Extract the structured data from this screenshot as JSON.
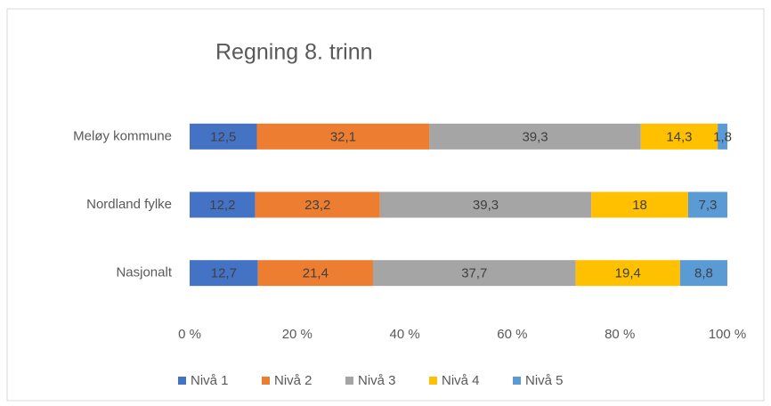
{
  "chart_data": {
    "type": "stacked_bar_horizontal",
    "title": "Regning 8. trinn",
    "categories": [
      "Meløy kommune",
      "Nordland fylke",
      "Nasjonalt"
    ],
    "series": [
      {
        "name": "Nivå 1",
        "color": "#4472c4",
        "values": [
          12.5,
          12.2,
          12.7
        ],
        "value_labels": [
          "12,5",
          "12,2",
          "12,7"
        ]
      },
      {
        "name": "Nivå 2",
        "color": "#ed7d31",
        "values": [
          32.1,
          23.2,
          21.4
        ],
        "value_labels": [
          "32,1",
          "23,2",
          "21,4"
        ]
      },
      {
        "name": "Nivå 3",
        "color": "#a5a5a5",
        "values": [
          39.3,
          39.3,
          37.7
        ],
        "value_labels": [
          "39,3",
          "39,3",
          "37,7"
        ]
      },
      {
        "name": "Nivå 4",
        "color": "#ffc000",
        "values": [
          14.3,
          18,
          19.4
        ],
        "value_labels": [
          "14,3",
          "18",
          "19,4"
        ]
      },
      {
        "name": "Nivå 5",
        "color": "#5b9bd5",
        "values": [
          1.8,
          7.3,
          8.8
        ],
        "value_labels": [
          "1,8",
          "7,3",
          "8,8"
        ]
      }
    ],
    "xlim": [
      0,
      100
    ],
    "xticks": [
      {
        "value": 0,
        "label": "0 %"
      },
      {
        "value": 20,
        "label": "20 %"
      },
      {
        "value": 40,
        "label": "40 %"
      },
      {
        "value": 60,
        "label": "60 %"
      },
      {
        "value": 80,
        "label": "80 %"
      },
      {
        "value": 100,
        "label": "100 %"
      }
    ],
    "grid": false,
    "legend": "bottom"
  }
}
